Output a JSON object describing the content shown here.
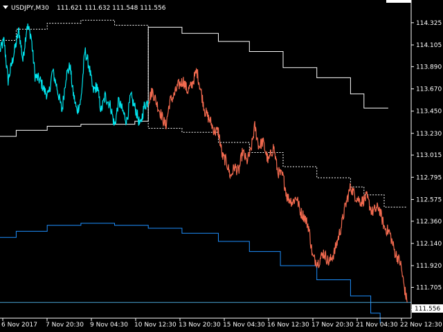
{
  "header": {
    "dropdown_icon": "triangle-down-icon",
    "symbol_label": "USDJPY,M30",
    "ohlc_label": "111.621 111.632 111.548 111.556"
  },
  "colors": {
    "background": "#000000",
    "axis": "#ffffff",
    "history_price": "#00e5ee",
    "forecast_price": "#f26a4f",
    "channel_white": "#ffffff",
    "channel_blue": "#1e90ff",
    "current_price_line": "#4aa8d8"
  },
  "chart_data": {
    "type": "line",
    "ylim": [
      111.4,
      114.55
    ],
    "y_ticks": [
      "114.325",
      "114.105",
      "113.890",
      "113.670",
      "113.450",
      "113.230",
      "113.015",
      "112.795",
      "112.575",
      "112.360",
      "112.140",
      "111.920",
      "111.705",
      "111.485"
    ],
    "current_price": "111.556",
    "x_ticks": [
      "6 Nov 2017",
      "7 Nov 20:30",
      "9 Nov 04:30",
      "10 Nov 12:30",
      "13 Nov 20:30",
      "15 Nov 04:30",
      "16 Nov 12:30",
      "17 Nov 20:30",
      "21 Nov 04:30",
      "22 Nov 12:30"
    ],
    "history_keys": [
      [
        0,
        114.05
      ],
      [
        0.3,
        114.15
      ],
      [
        0.6,
        113.75
      ],
      [
        1.0,
        114.0
      ],
      [
        1.4,
        114.25
      ],
      [
        1.7,
        113.95
      ],
      [
        2.0,
        114.3
      ],
      [
        2.3,
        114.2
      ],
      [
        2.6,
        113.8
      ],
      [
        3.0,
        113.75
      ],
      [
        3.3,
        113.65
      ],
      [
        3.6,
        113.6
      ],
      [
        3.9,
        113.85
      ],
      [
        4.2,
        113.7
      ],
      [
        4.6,
        113.45
      ],
      [
        4.9,
        113.8
      ],
      [
        5.2,
        113.9
      ],
      [
        5.4,
        113.65
      ],
      [
        5.7,
        113.45
      ],
      [
        6.0,
        113.55
      ],
      [
        6.3,
        114.05
      ],
      [
        6.6,
        113.9
      ],
      [
        6.9,
        113.65
      ],
      [
        7.2,
        113.7
      ],
      [
        7.5,
        113.45
      ],
      [
        7.8,
        113.6
      ],
      [
        8.2,
        113.5
      ],
      [
        8.5,
        113.3
      ],
      [
        8.8,
        113.55
      ],
      [
        9.1,
        113.45
      ],
      [
        9.4,
        113.35
      ],
      [
        9.7,
        113.6
      ],
      [
        10.1,
        113.45
      ],
      [
        10.4,
        113.3
      ],
      [
        10.7,
        113.5
      ],
      [
        11.0,
        113.55
      ]
    ],
    "forecast_keys": [
      [
        11.0,
        113.55
      ],
      [
        11.3,
        113.65
      ],
      [
        11.7,
        113.5
      ],
      [
        12.0,
        113.4
      ],
      [
        12.3,
        113.3
      ],
      [
        12.6,
        113.55
      ],
      [
        12.9,
        113.6
      ],
      [
        13.2,
        113.7
      ],
      [
        13.6,
        113.75
      ],
      [
        13.9,
        113.65
      ],
      [
        14.2,
        113.7
      ],
      [
        14.6,
        113.85
      ],
      [
        14.9,
        113.65
      ],
      [
        15.2,
        113.45
      ],
      [
        15.6,
        113.35
      ],
      [
        15.9,
        113.25
      ],
      [
        16.2,
        113.25
      ],
      [
        16.5,
        113.0
      ],
      [
        16.8,
        112.95
      ],
      [
        17.1,
        112.8
      ],
      [
        17.4,
        112.9
      ],
      [
        17.7,
        112.85
      ],
      [
        18.0,
        113.05
      ],
      [
        18.3,
        112.95
      ],
      [
        18.6,
        113.05
      ],
      [
        18.9,
        113.3
      ],
      [
        19.2,
        113.1
      ],
      [
        19.5,
        113.15
      ],
      [
        19.9,
        112.95
      ],
      [
        20.3,
        113.1
      ],
      [
        20.6,
        112.85
      ],
      [
        21.0,
        112.8
      ],
      [
        21.3,
        112.6
      ],
      [
        21.7,
        112.55
      ],
      [
        22.0,
        112.6
      ],
      [
        22.3,
        112.45
      ],
      [
        22.6,
        112.4
      ],
      [
        22.9,
        112.3
      ],
      [
        23.2,
        112.0
      ],
      [
        23.6,
        111.95
      ],
      [
        24.0,
        112.05
      ],
      [
        24.4,
        111.95
      ],
      [
        24.8,
        112.05
      ],
      [
        25.3,
        112.3
      ],
      [
        25.6,
        112.5
      ],
      [
        26.0,
        112.7
      ],
      [
        26.4,
        112.6
      ],
      [
        26.8,
        112.55
      ],
      [
        27.2,
        112.6
      ],
      [
        27.6,
        112.45
      ],
      [
        28.1,
        112.5
      ],
      [
        28.5,
        112.3
      ],
      [
        28.9,
        112.25
      ],
      [
        29.3,
        112.05
      ],
      [
        29.7,
        111.95
      ],
      [
        30.0,
        111.7
      ],
      [
        30.2,
        111.556
      ]
    ],
    "upper_white_solid": [
      [
        0,
        113.2
      ],
      [
        1.2,
        113.2
      ],
      [
        1.2,
        113.26
      ],
      [
        3.5,
        113.26
      ],
      [
        3.5,
        113.3
      ],
      [
        6,
        113.3
      ],
      [
        6,
        113.32
      ],
      [
        10,
        113.32
      ],
      [
        10,
        113.35
      ],
      [
        11,
        113.35
      ],
      [
        11,
        114.28
      ],
      [
        13.5,
        114.28
      ],
      [
        13.5,
        114.22
      ],
      [
        16.2,
        114.22
      ],
      [
        16.2,
        114.14
      ],
      [
        18.5,
        114.14
      ],
      [
        18.5,
        114.04
      ],
      [
        21,
        114.04
      ],
      [
        21,
        113.88
      ],
      [
        23.5,
        113.88
      ],
      [
        23.5,
        113.78
      ],
      [
        26,
        113.78
      ],
      [
        26,
        113.62
      ],
      [
        27,
        113.62
      ],
      [
        27,
        113.48
      ],
      [
        28.8,
        113.48
      ]
    ],
    "upper_white_dotted": [
      [
        0,
        114.15
      ],
      [
        1.2,
        114.15
      ],
      [
        1.2,
        114.26
      ],
      [
        3.5,
        114.26
      ],
      [
        3.5,
        114.32
      ],
      [
        6,
        114.32
      ],
      [
        6,
        114.35
      ],
      [
        8.5,
        114.35
      ],
      [
        8.5,
        114.3
      ],
      [
        11,
        114.3
      ],
      [
        11,
        113.28
      ],
      [
        13.5,
        113.28
      ],
      [
        13.5,
        113.24
      ],
      [
        16.2,
        113.24
      ],
      [
        16.2,
        113.14
      ],
      [
        18.5,
        113.14
      ],
      [
        18.5,
        113.04
      ],
      [
        21,
        113.04
      ],
      [
        21,
        112.9
      ],
      [
        23.5,
        112.9
      ],
      [
        23.5,
        112.79
      ],
      [
        26,
        112.79
      ],
      [
        26,
        112.7
      ],
      [
        27,
        112.7
      ],
      [
        27,
        112.62
      ],
      [
        28.5,
        112.62
      ],
      [
        28.5,
        112.5
      ],
      [
        30.2,
        112.5
      ]
    ],
    "lower_blue": [
      [
        0,
        112.2
      ],
      [
        1.2,
        112.2
      ],
      [
        1.2,
        112.26
      ],
      [
        3.5,
        112.26
      ],
      [
        3.5,
        112.32
      ],
      [
        6,
        112.32
      ],
      [
        6,
        112.34
      ],
      [
        8.5,
        112.34
      ],
      [
        8.5,
        112.32
      ],
      [
        11,
        112.32
      ],
      [
        11,
        112.29
      ],
      [
        13.5,
        112.29
      ],
      [
        13.5,
        112.24
      ],
      [
        16.2,
        112.24
      ],
      [
        16.2,
        112.16
      ],
      [
        18.5,
        112.16
      ],
      [
        18.5,
        112.06
      ],
      [
        20.8,
        112.06
      ],
      [
        20.8,
        111.92
      ],
      [
        23.5,
        111.92
      ],
      [
        23.5,
        111.78
      ],
      [
        26,
        111.78
      ],
      [
        26,
        111.62
      ],
      [
        27.5,
        111.62
      ],
      [
        27.5,
        111.45
      ],
      [
        28.2,
        111.45
      ],
      [
        28.2,
        111.35
      ]
    ]
  }
}
